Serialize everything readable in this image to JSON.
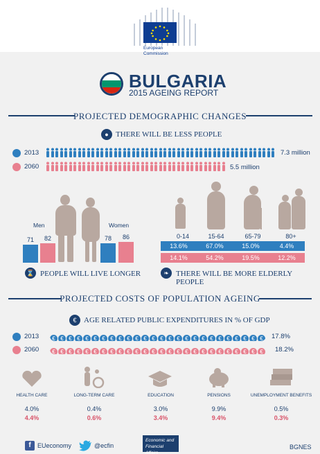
{
  "header": {
    "org_line1": "European",
    "org_line2": "Commission"
  },
  "title": {
    "country": "BULGARIA",
    "subtitle": "2015 AGEING REPORT"
  },
  "demographic": {
    "section_title": "PROJECTED DEMOGRAPHIC CHANGES",
    "less_people": "THERE WILL BE LESS PEOPLE",
    "rows": [
      {
        "year": "2013",
        "value": "7.3 million",
        "color": "#2f7fbf"
      },
      {
        "year": "2060",
        "value": "5.5 million",
        "color": "#e8808f"
      }
    ]
  },
  "life_expectancy": {
    "men_label": "Men",
    "women_label": "Women",
    "men_2013": "71",
    "men_2060": "82",
    "women_2013": "78",
    "women_2060": "86",
    "caption": "PEOPLE WILL LIVE LONGER"
  },
  "age_groups": {
    "labels": [
      "0-14",
      "15-64",
      "65-79",
      "80+"
    ],
    "row_2013": [
      "13.6%",
      "67.0%",
      "15.0%",
      "4.4%"
    ],
    "row_2060": [
      "14.1%",
      "54.2%",
      "19.5%",
      "12.2%"
    ],
    "caption": "THERE WILL BE MORE ELDERLY PEOPLE"
  },
  "costs": {
    "section_title": "PROJECTED COSTS OF POPULATION AGEING",
    "sub_title": "AGE RELATED PUBLIC EXPENDITURES IN % OF GDP",
    "rows": [
      {
        "year": "2013",
        "value": "17.8%",
        "color": "#2f7fbf"
      },
      {
        "year": "2060",
        "value": "18.2%",
        "color": "#e8808f"
      }
    ],
    "categories": [
      {
        "label": "HEALTH CARE",
        "v2013": "4.0%",
        "v2060": "4.4%"
      },
      {
        "label": "LONG-TERM CARE",
        "v2013": "0.4%",
        "v2060": "0.6%"
      },
      {
        "label": "EDUCATION",
        "v2013": "3.0%",
        "v2060": "3.4%"
      },
      {
        "label": "PENSIONS",
        "v2013": "9.9%",
        "v2060": "9.4%"
      },
      {
        "label": "UNEMPLOYMENT BENEFITS",
        "v2013": "0.5%",
        "v2060": "0.3%"
      }
    ]
  },
  "footer": {
    "facebook": "EUeconomy",
    "twitter": "@ecfin",
    "eco_line1": "Economic and",
    "eco_line2": "Financial Affairs",
    "watermark": "BGNES"
  },
  "colors": {
    "navy": "#1c3f6e",
    "blue": "#2f7fbf",
    "pink": "#e8808f",
    "figure": "#b8a8a0"
  }
}
